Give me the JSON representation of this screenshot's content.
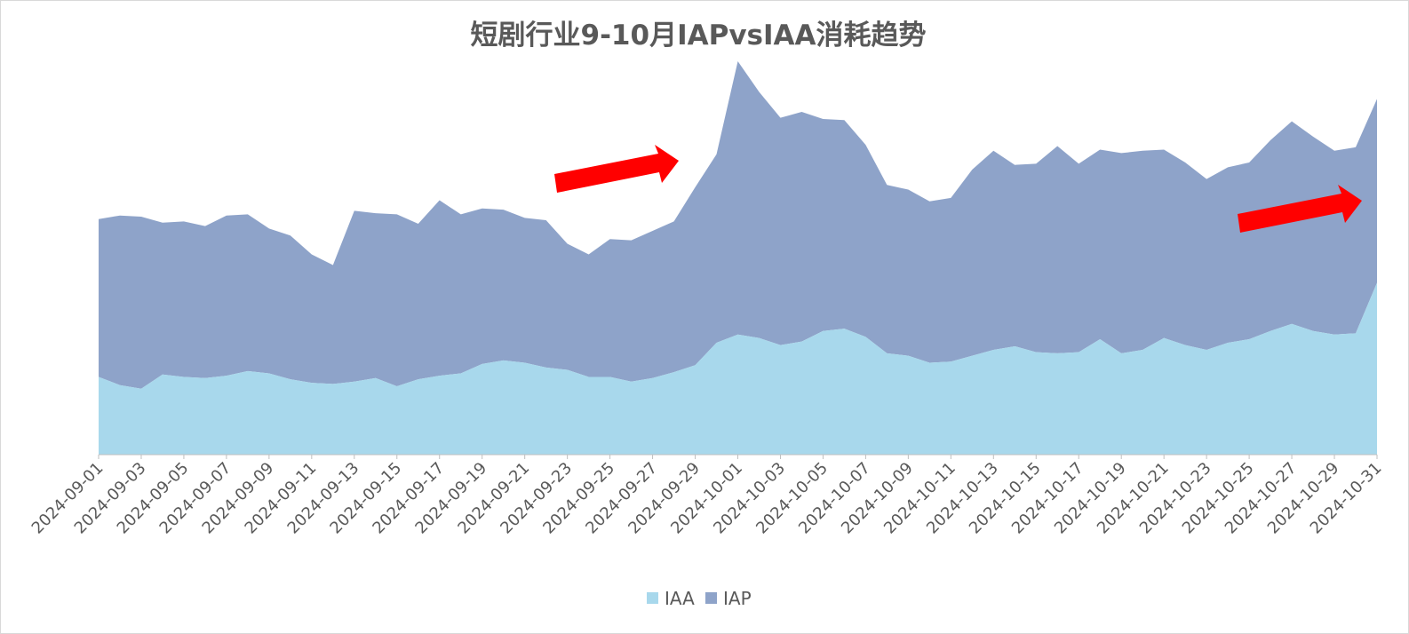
{
  "chart_data": {
    "type": "area",
    "stacked": true,
    "title": "短剧行业9-10月IAPvsIAA消耗趋势",
    "x": [
      "2024-09-01",
      "2024-09-02",
      "2024-09-03",
      "2024-09-04",
      "2024-09-05",
      "2024-09-06",
      "2024-09-07",
      "2024-09-08",
      "2024-09-09",
      "2024-09-10",
      "2024-09-11",
      "2024-09-12",
      "2024-09-13",
      "2024-09-14",
      "2024-09-15",
      "2024-09-16",
      "2024-09-17",
      "2024-09-18",
      "2024-09-19",
      "2024-09-20",
      "2024-09-21",
      "2024-09-22",
      "2024-09-23",
      "2024-09-24",
      "2024-09-25",
      "2024-09-26",
      "2024-09-27",
      "2024-09-28",
      "2024-09-29",
      "2024-09-30",
      "2024-10-01",
      "2024-10-02",
      "2024-10-03",
      "2024-10-04",
      "2024-10-05",
      "2024-10-06",
      "2024-10-07",
      "2024-10-08",
      "2024-10-09",
      "2024-10-10",
      "2024-10-11",
      "2024-10-12",
      "2024-10-13",
      "2024-10-14",
      "2024-10-15",
      "2024-10-16",
      "2024-10-17",
      "2024-10-18",
      "2024-10-19",
      "2024-10-20",
      "2024-10-21",
      "2024-10-22",
      "2024-10-23",
      "2024-10-24",
      "2024-10-25",
      "2024-10-26",
      "2024-10-27",
      "2024-10-28",
      "2024-10-29",
      "2024-10-30",
      "2024-10-31"
    ],
    "tick_labels": [
      "2024-09-01",
      "2024-09-03",
      "2024-09-05",
      "2024-09-07",
      "2024-09-09",
      "2024-09-11",
      "2024-09-13",
      "2024-09-15",
      "2024-09-17",
      "2024-09-19",
      "2024-09-21",
      "2024-09-23",
      "2024-09-25",
      "2024-09-27",
      "2024-09-29",
      "2024-10-01",
      "2024-10-03",
      "2024-10-05",
      "2024-10-07",
      "2024-10-09",
      "2024-10-11",
      "2024-10-13",
      "2024-10-15",
      "2024-10-17",
      "2024-10-19",
      "2024-10-21",
      "2024-10-23",
      "2024-10-25",
      "2024-10-27",
      "2024-10-29",
      "2024-10-31"
    ],
    "series": [
      {
        "name": "IAA",
        "color": "#a8d8ec",
        "values": [
          66,
          59,
          56,
          68,
          66,
          65,
          67,
          71,
          69,
          64,
          61,
          60,
          62,
          65,
          58,
          64,
          67,
          69,
          77,
          80,
          78,
          74,
          72,
          66,
          66,
          62,
          65,
          70,
          76,
          95,
          102,
          99,
          93,
          96,
          105,
          107,
          100,
          86,
          84,
          78,
          79,
          84,
          89,
          92,
          87,
          86,
          87,
          98,
          86,
          89,
          99,
          93,
          89,
          95,
          98,
          105,
          111,
          105,
          102,
          103,
          146
        ]
      },
      {
        "name": "IAP",
        "color": "#8ea3c9",
        "values": [
          134,
          144,
          146,
          129,
          132,
          129,
          136,
          133,
          123,
          122,
          109,
          101,
          145,
          140,
          146,
          132,
          149,
          135,
          132,
          128,
          123,
          125,
          107,
          104,
          117,
          120,
          125,
          128,
          151,
          160,
          232,
          209,
          193,
          195,
          180,
          177,
          163,
          143,
          141,
          137,
          139,
          158,
          169,
          154,
          160,
          176,
          160,
          161,
          170,
          169,
          160,
          155,
          145,
          149,
          150,
          162,
          172,
          165,
          156,
          158,
          156
        ]
      }
    ],
    "ylim": [
      0,
      340
    ],
    "grid": false,
    "legend_position": "bottom",
    "annotations": [
      {
        "type": "arrow",
        "color": "#ff0000",
        "near": "2024-09-29"
      },
      {
        "type": "arrow",
        "color": "#ff0000",
        "near": "2024-10-31"
      }
    ]
  }
}
